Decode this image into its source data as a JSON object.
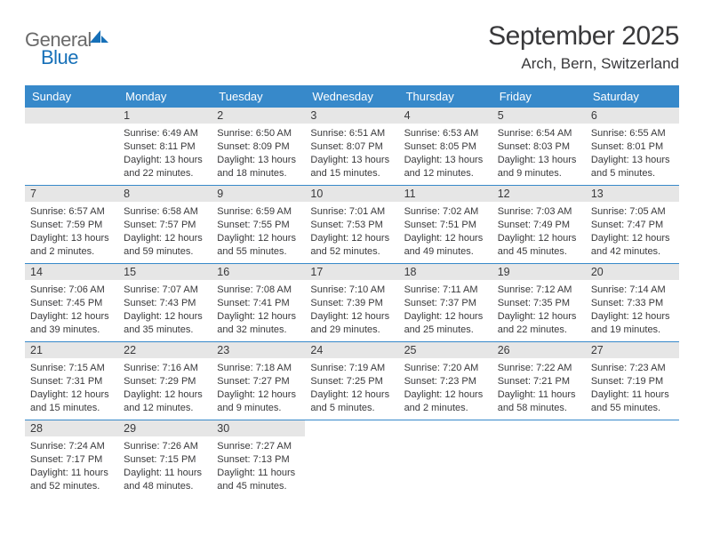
{
  "logo": {
    "word1": "General",
    "word2": "Blue"
  },
  "title": "September 2025",
  "location": "Arch, Bern, Switzerland",
  "colors": {
    "accent": "#3789ca",
    "header_text": "#ffffff",
    "daynum_bg": "#e6e6e6",
    "text": "#39393b",
    "logo_gray": "#6a6a6a",
    "logo_blue": "#1670b8",
    "background": "#ffffff"
  },
  "typography": {
    "title_fontsize": 30,
    "location_fontsize": 17,
    "dayheader_fontsize": 13,
    "daynum_fontsize": 12.5,
    "content_fontsize": 11
  },
  "day_headers": [
    "Sunday",
    "Monday",
    "Tuesday",
    "Wednesday",
    "Thursday",
    "Friday",
    "Saturday"
  ],
  "weeks": [
    [
      null,
      {
        "n": "1",
        "sunrise": "Sunrise: 6:49 AM",
        "sunset": "Sunset: 8:11 PM",
        "daylight": "Daylight: 13 hours and 22 minutes."
      },
      {
        "n": "2",
        "sunrise": "Sunrise: 6:50 AM",
        "sunset": "Sunset: 8:09 PM",
        "daylight": "Daylight: 13 hours and 18 minutes."
      },
      {
        "n": "3",
        "sunrise": "Sunrise: 6:51 AM",
        "sunset": "Sunset: 8:07 PM",
        "daylight": "Daylight: 13 hours and 15 minutes."
      },
      {
        "n": "4",
        "sunrise": "Sunrise: 6:53 AM",
        "sunset": "Sunset: 8:05 PM",
        "daylight": "Daylight: 13 hours and 12 minutes."
      },
      {
        "n": "5",
        "sunrise": "Sunrise: 6:54 AM",
        "sunset": "Sunset: 8:03 PM",
        "daylight": "Daylight: 13 hours and 9 minutes."
      },
      {
        "n": "6",
        "sunrise": "Sunrise: 6:55 AM",
        "sunset": "Sunset: 8:01 PM",
        "daylight": "Daylight: 13 hours and 5 minutes."
      }
    ],
    [
      {
        "n": "7",
        "sunrise": "Sunrise: 6:57 AM",
        "sunset": "Sunset: 7:59 PM",
        "daylight": "Daylight: 13 hours and 2 minutes."
      },
      {
        "n": "8",
        "sunrise": "Sunrise: 6:58 AM",
        "sunset": "Sunset: 7:57 PM",
        "daylight": "Daylight: 12 hours and 59 minutes."
      },
      {
        "n": "9",
        "sunrise": "Sunrise: 6:59 AM",
        "sunset": "Sunset: 7:55 PM",
        "daylight": "Daylight: 12 hours and 55 minutes."
      },
      {
        "n": "10",
        "sunrise": "Sunrise: 7:01 AM",
        "sunset": "Sunset: 7:53 PM",
        "daylight": "Daylight: 12 hours and 52 minutes."
      },
      {
        "n": "11",
        "sunrise": "Sunrise: 7:02 AM",
        "sunset": "Sunset: 7:51 PM",
        "daylight": "Daylight: 12 hours and 49 minutes."
      },
      {
        "n": "12",
        "sunrise": "Sunrise: 7:03 AM",
        "sunset": "Sunset: 7:49 PM",
        "daylight": "Daylight: 12 hours and 45 minutes."
      },
      {
        "n": "13",
        "sunrise": "Sunrise: 7:05 AM",
        "sunset": "Sunset: 7:47 PM",
        "daylight": "Daylight: 12 hours and 42 minutes."
      }
    ],
    [
      {
        "n": "14",
        "sunrise": "Sunrise: 7:06 AM",
        "sunset": "Sunset: 7:45 PM",
        "daylight": "Daylight: 12 hours and 39 minutes."
      },
      {
        "n": "15",
        "sunrise": "Sunrise: 7:07 AM",
        "sunset": "Sunset: 7:43 PM",
        "daylight": "Daylight: 12 hours and 35 minutes."
      },
      {
        "n": "16",
        "sunrise": "Sunrise: 7:08 AM",
        "sunset": "Sunset: 7:41 PM",
        "daylight": "Daylight: 12 hours and 32 minutes."
      },
      {
        "n": "17",
        "sunrise": "Sunrise: 7:10 AM",
        "sunset": "Sunset: 7:39 PM",
        "daylight": "Daylight: 12 hours and 29 minutes."
      },
      {
        "n": "18",
        "sunrise": "Sunrise: 7:11 AM",
        "sunset": "Sunset: 7:37 PM",
        "daylight": "Daylight: 12 hours and 25 minutes."
      },
      {
        "n": "19",
        "sunrise": "Sunrise: 7:12 AM",
        "sunset": "Sunset: 7:35 PM",
        "daylight": "Daylight: 12 hours and 22 minutes."
      },
      {
        "n": "20",
        "sunrise": "Sunrise: 7:14 AM",
        "sunset": "Sunset: 7:33 PM",
        "daylight": "Daylight: 12 hours and 19 minutes."
      }
    ],
    [
      {
        "n": "21",
        "sunrise": "Sunrise: 7:15 AM",
        "sunset": "Sunset: 7:31 PM",
        "daylight": "Daylight: 12 hours and 15 minutes."
      },
      {
        "n": "22",
        "sunrise": "Sunrise: 7:16 AM",
        "sunset": "Sunset: 7:29 PM",
        "daylight": "Daylight: 12 hours and 12 minutes."
      },
      {
        "n": "23",
        "sunrise": "Sunrise: 7:18 AM",
        "sunset": "Sunset: 7:27 PM",
        "daylight": "Daylight: 12 hours and 9 minutes."
      },
      {
        "n": "24",
        "sunrise": "Sunrise: 7:19 AM",
        "sunset": "Sunset: 7:25 PM",
        "daylight": "Daylight: 12 hours and 5 minutes."
      },
      {
        "n": "25",
        "sunrise": "Sunrise: 7:20 AM",
        "sunset": "Sunset: 7:23 PM",
        "daylight": "Daylight: 12 hours and 2 minutes."
      },
      {
        "n": "26",
        "sunrise": "Sunrise: 7:22 AM",
        "sunset": "Sunset: 7:21 PM",
        "daylight": "Daylight: 11 hours and 58 minutes."
      },
      {
        "n": "27",
        "sunrise": "Sunrise: 7:23 AM",
        "sunset": "Sunset: 7:19 PM",
        "daylight": "Daylight: 11 hours and 55 minutes."
      }
    ],
    [
      {
        "n": "28",
        "sunrise": "Sunrise: 7:24 AM",
        "sunset": "Sunset: 7:17 PM",
        "daylight": "Daylight: 11 hours and 52 minutes."
      },
      {
        "n": "29",
        "sunrise": "Sunrise: 7:26 AM",
        "sunset": "Sunset: 7:15 PM",
        "daylight": "Daylight: 11 hours and 48 minutes."
      },
      {
        "n": "30",
        "sunrise": "Sunrise: 7:27 AM",
        "sunset": "Sunset: 7:13 PM",
        "daylight": "Daylight: 11 hours and 45 minutes."
      },
      null,
      null,
      null,
      null
    ]
  ]
}
